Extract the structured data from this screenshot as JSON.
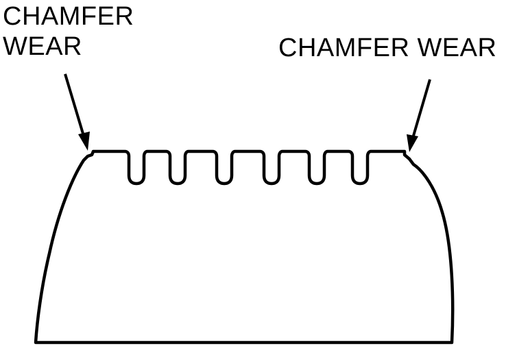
{
  "labels": {
    "left_line1": "CHAMFER",
    "left_line2": "WEAR",
    "right": "CHAMFER WEAR"
  },
  "colors": {
    "stroke": "#000000",
    "background": "#ffffff"
  }
}
